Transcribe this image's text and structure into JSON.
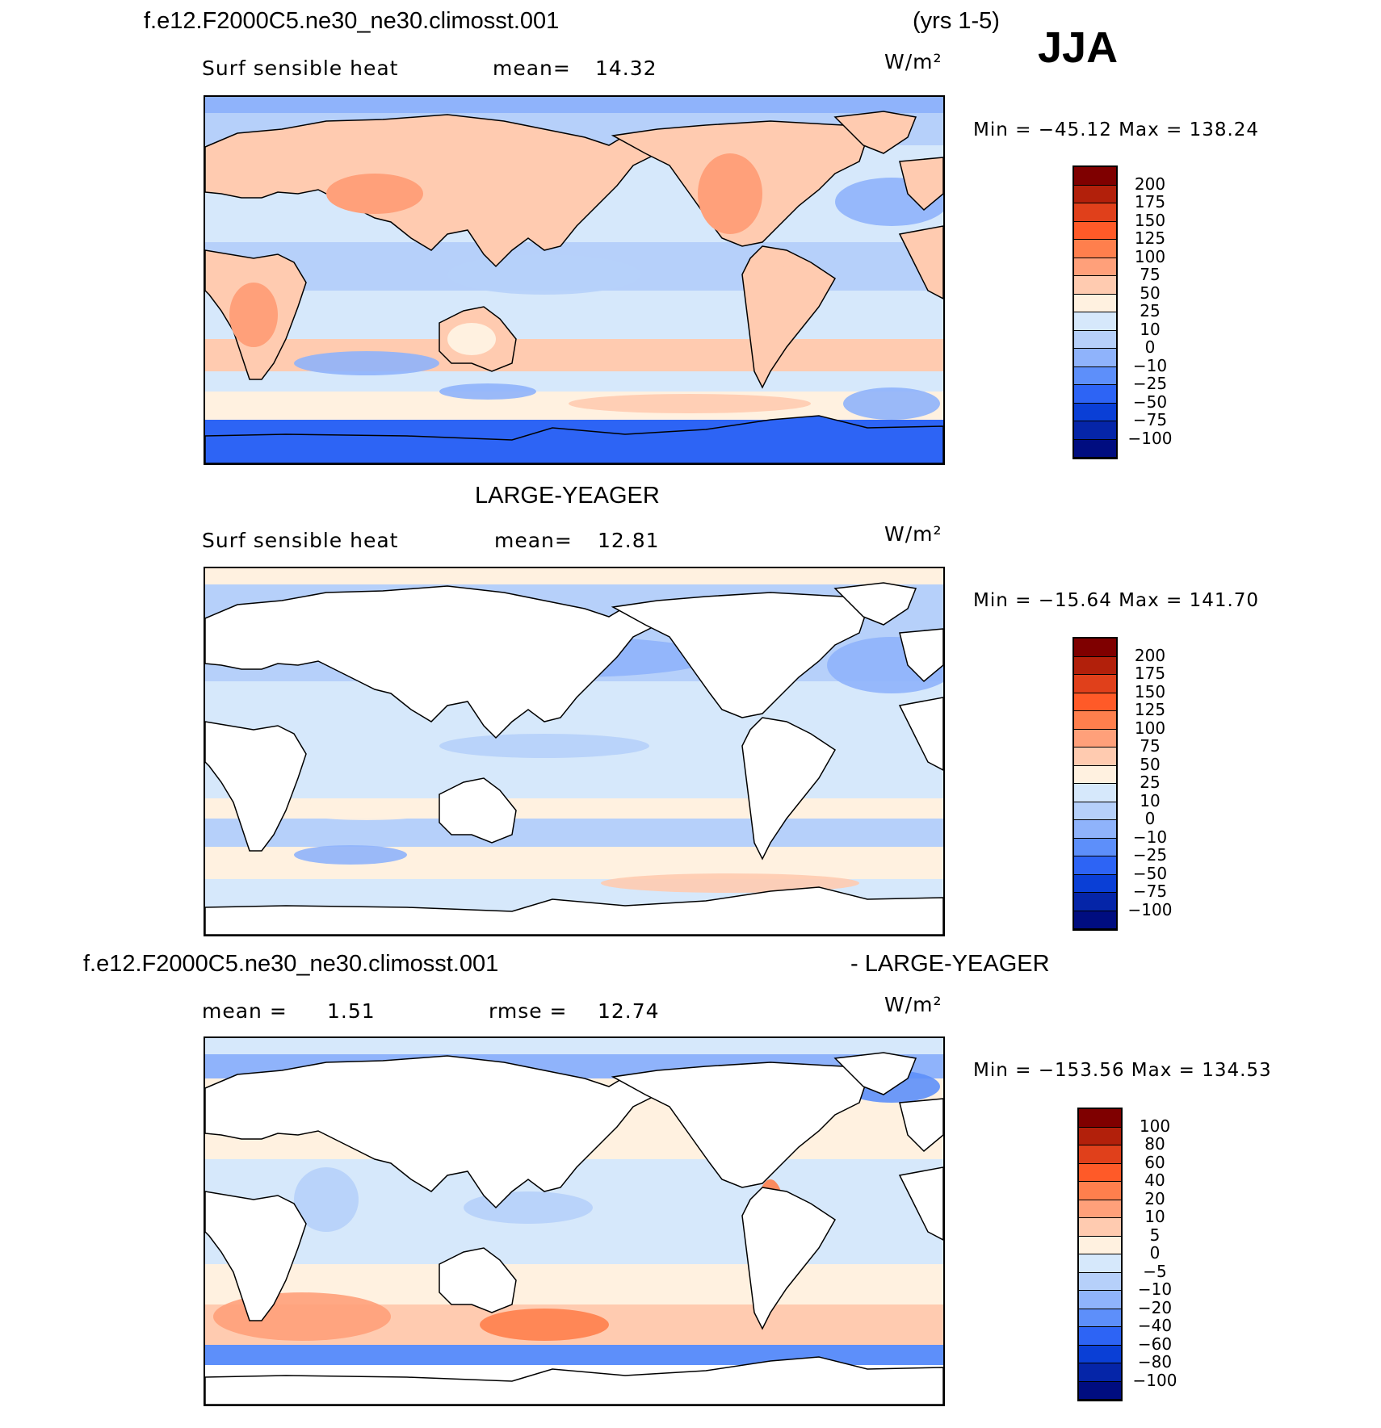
{
  "header": {
    "case": "f.e12.F2000C5.ne30_ne30.climosst.001",
    "years": "(yrs 1-5)",
    "season": "JJA"
  },
  "panels": [
    {
      "title": "",
      "variable": "Surf sensible heat",
      "stat_left": "mean=",
      "stat_left_value": "14.32",
      "stat_right": "",
      "stat_right_value": "",
      "units": "W/m²",
      "minmax": "Min = −45.12 Max = 138.24",
      "levels": [
        "200",
        "175",
        "150",
        "125",
        "100",
        "75",
        "50",
        "25",
        "10",
        "0",
        "−10",
        "−25",
        "−50",
        "−75",
        "−100"
      ],
      "colors": [
        "#7f0000",
        "#b2200b",
        "#e0401b",
        "#ff5a28",
        "#ff7f4d",
        "#ffa07a",
        "#ffcbb0",
        "#fff1e0",
        "#d6e8fb",
        "#b6d0fa",
        "#8fb3fb",
        "#5d8ffa",
        "#2d64f5",
        "#0a3fd6",
        "#0525a8",
        "#000d80"
      ],
      "land_mode": "colored"
    },
    {
      "title": "LARGE-YEAGER",
      "variable": "Surf sensible heat",
      "stat_left": "mean=",
      "stat_left_value": "12.81",
      "stat_right": "",
      "stat_right_value": "",
      "units": "W/m²",
      "minmax": "Min = −15.64 Max = 141.70",
      "levels": [
        "200",
        "175",
        "150",
        "125",
        "100",
        "75",
        "50",
        "25",
        "10",
        "0",
        "−10",
        "−25",
        "−50",
        "−75",
        "−100"
      ],
      "colors": [
        "#7f0000",
        "#b2200b",
        "#e0401b",
        "#ff5a28",
        "#ff7f4d",
        "#ffa07a",
        "#ffcbb0",
        "#fff1e0",
        "#d6e8fb",
        "#b6d0fa",
        "#8fb3fb",
        "#5d8ffa",
        "#2d64f5",
        "#0a3fd6",
        "#0525a8",
        "#000d80"
      ],
      "land_mode": "white"
    },
    {
      "title": "f.e12.F2000C5.ne30_ne30.climosst.001",
      "title_right": "- LARGE-YEAGER",
      "variable": "mean =",
      "stat_left": "",
      "stat_left_value": "1.51",
      "stat_right": "rmse =",
      "stat_right_value": "12.74",
      "units": "W/m²",
      "minmax": "Min = −153.56 Max = 134.53",
      "levels": [
        "100",
        "80",
        "60",
        "40",
        "20",
        "10",
        "5",
        "0",
        "−5",
        "−10",
        "−20",
        "−40",
        "−60",
        "−80",
        "−100"
      ],
      "colors": [
        "#7f0000",
        "#b2200b",
        "#e0401b",
        "#ff5a28",
        "#ff7f4d",
        "#ffa07a",
        "#ffcbb0",
        "#fff1e0",
        "#d6e8fb",
        "#b6d0fa",
        "#8fb3fb",
        "#5d8ffa",
        "#2d64f5",
        "#0a3fd6",
        "#0525a8",
        "#000d80"
      ],
      "land_mode": "white"
    }
  ]
}
